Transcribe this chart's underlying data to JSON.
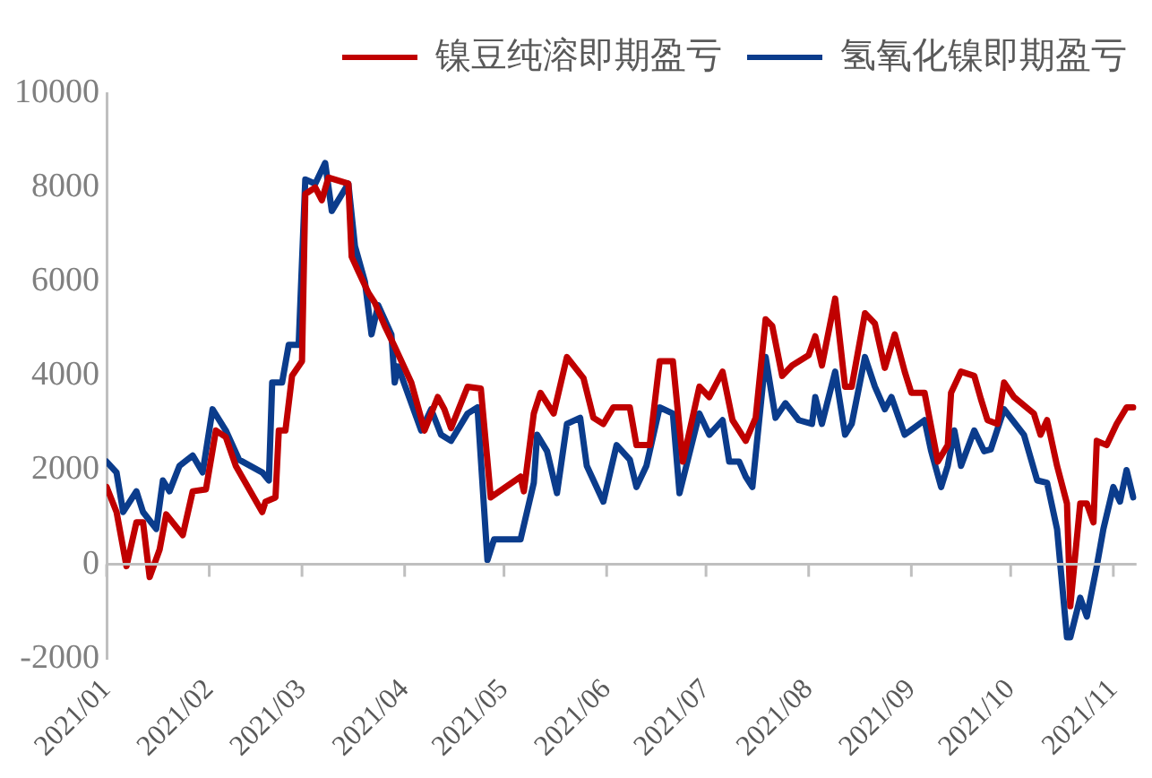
{
  "chart_data": {
    "type": "line",
    "legend": "top",
    "grid": false,
    "marker": "none",
    "line_style": "solid",
    "xlim": [
      "2021-01-01",
      "2021-11-08"
    ],
    "xticks": [
      {
        "value": "2021-01-01",
        "label": "2021/01"
      },
      {
        "value": "2021-02-01",
        "label": "2021/02"
      },
      {
        "value": "2021-03-01",
        "label": "2021/03"
      },
      {
        "value": "2021-04-01",
        "label": "2021/04"
      },
      {
        "value": "2021-05-01",
        "label": "2021/05"
      },
      {
        "value": "2021-06-01",
        "label": "2021/06"
      },
      {
        "value": "2021-07-01",
        "label": "2021/07"
      },
      {
        "value": "2021-08-01",
        "label": "2021/08"
      },
      {
        "value": "2021-09-01",
        "label": "2021/09"
      },
      {
        "value": "2021-10-01",
        "label": "2021/10"
      },
      {
        "value": "2021-11-01",
        "label": "2021/11"
      }
    ],
    "ref_lines": [
      {
        "axis": "y",
        "value": 0,
        "color": "#bfbfbf"
      }
    ],
    "ylim": [
      -2000,
      10000
    ],
    "yticks": [
      -2000,
      0,
      2000,
      4000,
      6000,
      8000,
      10000
    ],
    "series": [
      {
        "name": "镍豆纯溶即期盈亏",
        "color": "#c00000",
        "x": [
          "2021-01-01",
          "2021-01-04",
          "2021-01-07",
          "2021-01-10",
          "2021-01-12",
          "2021-01-14",
          "2021-01-17",
          "2021-01-19",
          "2021-01-24",
          "2021-01-27",
          "2021-01-31",
          "2021-02-03",
          "2021-02-06",
          "2021-02-09",
          "2021-02-17",
          "2021-02-18",
          "2021-02-21",
          "2021-02-22",
          "2021-02-24",
          "2021-02-26",
          "2021-03-01",
          "2021-03-02",
          "2021-03-05",
          "2021-03-07",
          "2021-03-09",
          "2021-03-15",
          "2021-03-16",
          "2021-03-18",
          "2021-03-21",
          "2021-03-23",
          "2021-03-26",
          "2021-03-29",
          "2021-04-03",
          "2021-04-07",
          "2021-04-11",
          "2021-04-13",
          "2021-04-15",
          "2021-04-20",
          "2021-04-24",
          "2021-04-27",
          "2021-05-06",
          "2021-05-07",
          "2021-05-10",
          "2021-05-12",
          "2021-05-16",
          "2021-05-20",
          "2021-05-25",
          "2021-05-28",
          "2021-05-31",
          "2021-06-03",
          "2021-06-08",
          "2021-06-10",
          "2021-06-14",
          "2021-06-17",
          "2021-06-21",
          "2021-06-24",
          "2021-06-29",
          "2021-07-02",
          "2021-07-06",
          "2021-07-09",
          "2021-07-13",
          "2021-07-16",
          "2021-07-19",
          "2021-07-21",
          "2021-07-24",
          "2021-07-27",
          "2021-08-01",
          "2021-08-03",
          "2021-08-05",
          "2021-08-09",
          "2021-08-12",
          "2021-08-14",
          "2021-08-18",
          "2021-08-21",
          "2021-08-24",
          "2021-08-27",
          "2021-08-30",
          "2021-09-01",
          "2021-09-05",
          "2021-09-09",
          "2021-09-12",
          "2021-09-13",
          "2021-09-16",
          "2021-09-20",
          "2021-09-22",
          "2021-09-24",
          "2021-09-27",
          "2021-09-29",
          "2021-10-02",
          "2021-10-08",
          "2021-10-10",
          "2021-10-12",
          "2021-10-15",
          "2021-10-18",
          "2021-10-19",
          "2021-10-22",
          "2021-10-24",
          "2021-10-26",
          "2021-10-27",
          "2021-10-30",
          "2021-11-02",
          "2021-11-05",
          "2021-11-07"
        ],
        "values": [
          1640,
          1110,
          -40,
          890,
          890,
          -270,
          310,
          1060,
          620,
          1550,
          1590,
          2840,
          2700,
          2090,
          1110,
          1330,
          1420,
          2840,
          2840,
          4000,
          4310,
          7860,
          8000,
          7730,
          8210,
          8080,
          6530,
          6220,
          5770,
          5550,
          5060,
          4620,
          3860,
          2840,
          3550,
          3290,
          2890,
          3770,
          3730,
          1420,
          1860,
          1550,
          3200,
          3640,
          3200,
          4400,
          3950,
          3110,
          2980,
          3330,
          3330,
          2530,
          2530,
          4310,
          4310,
          2180,
          3770,
          3550,
          4090,
          3060,
          2620,
          3110,
          5200,
          5060,
          4000,
          4220,
          4440,
          4840,
          4220,
          5640,
          3770,
          3770,
          5330,
          5110,
          4170,
          4880,
          4090,
          3640,
          3640,
          2180,
          2530,
          3640,
          4090,
          4000,
          3510,
          3060,
          2980,
          3860,
          3550,
          3200,
          2750,
          3060,
          2090,
          1290,
          -890,
          1290,
          1290,
          890,
          2620,
          2530,
          2980,
          3330,
          3330
        ]
      },
      {
        "name": "氢氧化镍即期盈亏",
        "color": "#0b3c8c",
        "x": [
          "2021-01-01",
          "2021-01-04",
          "2021-01-06",
          "2021-01-10",
          "2021-01-12",
          "2021-01-16",
          "2021-01-18",
          "2021-01-20",
          "2021-01-23",
          "2021-01-27",
          "2021-01-30",
          "2021-02-02",
          "2021-02-06",
          "2021-02-10",
          "2021-02-17",
          "2021-02-19",
          "2021-02-20",
          "2021-02-23",
          "2021-02-25",
          "2021-02-28",
          "2021-03-02",
          "2021-03-05",
          "2021-03-08",
          "2021-03-10",
          "2021-03-15",
          "2021-03-17",
          "2021-03-20",
          "2021-03-22",
          "2021-03-24",
          "2021-03-28",
          "2021-03-29",
          "2021-03-30",
          "2021-04-06",
          "2021-04-09",
          "2021-04-12",
          "2021-04-15",
          "2021-04-20",
          "2021-04-23",
          "2021-04-26",
          "2021-04-28",
          "2021-05-06",
          "2021-05-10",
          "2021-05-11",
          "2021-05-14",
          "2021-05-17",
          "2021-05-20",
          "2021-05-24",
          "2021-05-26",
          "2021-05-31",
          "2021-06-04",
          "2021-06-08",
          "2021-06-10",
          "2021-06-13",
          "2021-06-17",
          "2021-06-21",
          "2021-06-23",
          "2021-06-29",
          "2021-07-02",
          "2021-07-06",
          "2021-07-08",
          "2021-07-11",
          "2021-07-13",
          "2021-07-15",
          "2021-07-19",
          "2021-07-22",
          "2021-07-25",
          "2021-07-29",
          "2021-08-02",
          "2021-08-03",
          "2021-08-05",
          "2021-08-09",
          "2021-08-12",
          "2021-08-14",
          "2021-08-18",
          "2021-08-21",
          "2021-08-24",
          "2021-08-26",
          "2021-08-30",
          "2021-09-05",
          "2021-09-07",
          "2021-09-10",
          "2021-09-12",
          "2021-09-14",
          "2021-09-16",
          "2021-09-20",
          "2021-09-23",
          "2021-09-25",
          "2021-09-29",
          "2021-10-05",
          "2021-10-09",
          "2021-10-12",
          "2021-10-15",
          "2021-10-18",
          "2021-10-19",
          "2021-10-22",
          "2021-10-24",
          "2021-10-27",
          "2021-10-29",
          "2021-11-01",
          "2021-11-03",
          "2021-11-05",
          "2021-11-07"
        ],
        "values": [
          2180,
          1950,
          1110,
          1550,
          1110,
          750,
          1780,
          1550,
          2090,
          2310,
          1950,
          3290,
          2840,
          2220,
          1950,
          1780,
          3860,
          3860,
          4660,
          4660,
          8170,
          8080,
          8520,
          7500,
          8080,
          6750,
          6000,
          4880,
          5500,
          4880,
          3860,
          4200,
          2840,
          3290,
          2750,
          2620,
          3200,
          3330,
          90,
          530,
          530,
          1730,
          2750,
          2400,
          1510,
          2980,
          3110,
          2090,
          1330,
          2530,
          2220,
          1640,
          2090,
          3330,
          3200,
          1510,
          3200,
          2750,
          3060,
          2180,
          2180,
          1860,
          1640,
          4400,
          3110,
          3420,
          3060,
          2980,
          3550,
          2980,
          4090,
          2750,
          2980,
          4400,
          3770,
          3290,
          3550,
          2750,
          3060,
          2400,
          1640,
          2090,
          2840,
          2090,
          2840,
          2400,
          2440,
          3290,
          2750,
          1780,
          1730,
          750,
          -1550,
          -1550,
          -710,
          -1110,
          -40,
          750,
          1640,
          1330,
          2000,
          1420
        ]
      }
    ]
  }
}
